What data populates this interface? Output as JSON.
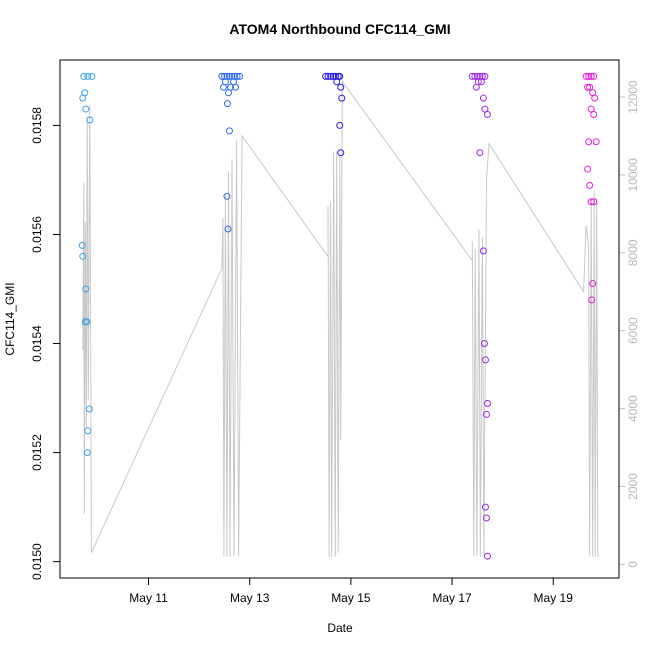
{
  "chart_data": {
    "type": "scatter",
    "title": "ATOM4 Northbound CFC114_GMI",
    "xlabel": "Date",
    "ylabel": "CFC114_GMI",
    "x_ticks": [
      "May 11",
      "May 13",
      "May 15",
      "May 17",
      "May 19"
    ],
    "x_tick_days": [
      11,
      13,
      15,
      17,
      19
    ],
    "xlim": [
      9.25,
      20.3
    ],
    "ylim": [
      0.01497,
      0.01592
    ],
    "y_ticks": [
      0.015,
      0.0152,
      0.0154,
      0.0156,
      0.0158
    ],
    "y_tick_labels": [
      "0.0150",
      "0.0152",
      "0.0154",
      "0.0156",
      "0.0158"
    ],
    "right_axis": {
      "ylim": [
        -350,
        12950
      ],
      "ticks": [
        0,
        2000,
        4000,
        6000,
        8000,
        10000,
        12000
      ],
      "tick_labels": [
        "0",
        "2000",
        "4000",
        "6000",
        "8000",
        "10000",
        "12000"
      ],
      "line_color": "#c8c8c8"
    },
    "grid": false,
    "point_colors": [
      "#3aa0ea",
      "#2d6cf0",
      "#2418e6",
      "#9a28e8",
      "#e320d8"
    ],
    "flights": [
      {
        "color": "#3aa0ea",
        "points": [
          [
            9.72,
            0.01589
          ],
          [
            9.8,
            0.01589
          ],
          [
            9.88,
            0.01589
          ],
          [
            9.7,
            0.01585
          ],
          [
            9.74,
            0.01586
          ],
          [
            9.76,
            0.01583
          ],
          [
            9.84,
            0.01581
          ],
          [
            9.69,
            0.01558
          ],
          [
            9.7,
            0.01556
          ],
          [
            9.76,
            0.0155
          ],
          [
            9.75,
            0.01544
          ],
          [
            9.78,
            0.01544
          ],
          [
            9.83,
            0.01528
          ],
          [
            9.8,
            0.01524
          ],
          [
            9.79,
            0.0152
          ]
        ],
        "altitude": [
          [
            9.7,
            5500
          ],
          [
            9.72,
            9800
          ],
          [
            9.73,
            1300
          ],
          [
            9.75,
            8800
          ],
          [
            9.77,
            3500
          ],
          [
            9.79,
            11500
          ],
          [
            9.81,
            4200
          ],
          [
            9.84,
            11800
          ],
          [
            9.87,
            300
          ]
        ]
      },
      {
        "color": "#2d6cf0",
        "points": [
          [
            12.45,
            0.01589
          ],
          [
            12.5,
            0.01589
          ],
          [
            12.55,
            0.01589
          ],
          [
            12.6,
            0.01589
          ],
          [
            12.65,
            0.01589
          ],
          [
            12.7,
            0.01589
          ],
          [
            12.75,
            0.01589
          ],
          [
            12.8,
            0.01589
          ],
          [
            12.48,
            0.01587
          ],
          [
            12.52,
            0.01588
          ],
          [
            12.58,
            0.01586
          ],
          [
            12.62,
            0.01587
          ],
          [
            12.68,
            0.01588
          ],
          [
            12.72,
            0.01587
          ],
          [
            12.56,
            0.01584
          ],
          [
            12.6,
            0.01579
          ],
          [
            12.55,
            0.01567
          ],
          [
            12.57,
            0.01561
          ]
        ],
        "altitude": [
          [
            12.45,
            7600
          ],
          [
            12.47,
            8900
          ],
          [
            12.49,
            200
          ],
          [
            12.52,
            9500
          ],
          [
            12.55,
            200
          ],
          [
            12.58,
            10100
          ],
          [
            12.61,
            200
          ],
          [
            12.65,
            10400
          ],
          [
            12.69,
            200
          ],
          [
            12.74,
            10900
          ],
          [
            12.78,
            200
          ],
          [
            12.85,
            11000
          ],
          [
            14.55,
            7900
          ]
        ]
      },
      {
        "color": "#2418e6",
        "points": [
          [
            14.5,
            0.01589
          ],
          [
            14.55,
            0.01589
          ],
          [
            14.6,
            0.01589
          ],
          [
            14.65,
            0.01589
          ],
          [
            14.7,
            0.01589
          ],
          [
            14.75,
            0.01589
          ],
          [
            14.78,
            0.01589
          ],
          [
            14.72,
            0.01588
          ],
          [
            14.8,
            0.01587
          ],
          [
            14.82,
            0.01585
          ],
          [
            14.78,
            0.0158
          ],
          [
            14.8,
            0.01575
          ]
        ],
        "altitude": [
          [
            14.55,
            9200
          ],
          [
            14.57,
            200
          ],
          [
            14.6,
            9300
          ],
          [
            14.62,
            200
          ],
          [
            14.66,
            10600
          ],
          [
            14.69,
            200
          ],
          [
            14.72,
            10600
          ],
          [
            14.75,
            300
          ],
          [
            14.78,
            10500
          ],
          [
            14.8,
            3200
          ],
          [
            14.83,
            12400
          ],
          [
            17.4,
            7800
          ]
        ]
      },
      {
        "color": "#9a28e8",
        "points": [
          [
            17.4,
            0.01589
          ],
          [
            17.45,
            0.01589
          ],
          [
            17.5,
            0.01589
          ],
          [
            17.55,
            0.01589
          ],
          [
            17.6,
            0.01589
          ],
          [
            17.65,
            0.01589
          ],
          [
            17.48,
            0.01587
          ],
          [
            17.52,
            0.01588
          ],
          [
            17.58,
            0.01588
          ],
          [
            17.62,
            0.01585
          ],
          [
            17.65,
            0.01583
          ],
          [
            17.7,
            0.01582
          ],
          [
            17.55,
            0.01575
          ],
          [
            17.62,
            0.01557
          ],
          [
            17.64,
            0.0154
          ],
          [
            17.66,
            0.01537
          ],
          [
            17.7,
            0.01529
          ],
          [
            17.68,
            0.01527
          ],
          [
            17.66,
            0.0151
          ],
          [
            17.68,
            0.01508
          ],
          [
            17.7,
            0.01501
          ]
        ],
        "altitude": [
          [
            17.4,
            8300
          ],
          [
            17.43,
            200
          ],
          [
            17.46,
            8100
          ],
          [
            17.49,
            200
          ],
          [
            17.53,
            8600
          ],
          [
            17.56,
            200
          ],
          [
            17.6,
            8400
          ],
          [
            17.63,
            200
          ],
          [
            17.68,
            9900
          ],
          [
            17.73,
            10800
          ],
          [
            19.6,
            7000
          ]
        ]
      },
      {
        "color": "#e320d8",
        "points": [
          [
            19.65,
            0.01589
          ],
          [
            19.7,
            0.01589
          ],
          [
            19.75,
            0.01589
          ],
          [
            19.8,
            0.01589
          ],
          [
            19.68,
            0.01587
          ],
          [
            19.72,
            0.01587
          ],
          [
            19.78,
            0.01586
          ],
          [
            19.82,
            0.01585
          ],
          [
            19.75,
            0.01583
          ],
          [
            19.8,
            0.01582
          ],
          [
            19.7,
            0.01577
          ],
          [
            19.85,
            0.01577
          ],
          [
            19.68,
            0.01572
          ],
          [
            19.72,
            0.01569
          ],
          [
            19.75,
            0.01566
          ],
          [
            19.8,
            0.01566
          ],
          [
            19.78,
            0.01551
          ],
          [
            19.76,
            0.01548
          ]
        ],
        "altitude": [
          [
            19.6,
            7000
          ],
          [
            19.65,
            8700
          ],
          [
            19.7,
            8200
          ],
          [
            19.72,
            200
          ],
          [
            19.75,
            9300
          ],
          [
            19.78,
            200
          ],
          [
            19.81,
            9600
          ],
          [
            19.83,
            200
          ],
          [
            19.86,
            9400
          ],
          [
            19.88,
            200
          ]
        ]
      }
    ]
  }
}
